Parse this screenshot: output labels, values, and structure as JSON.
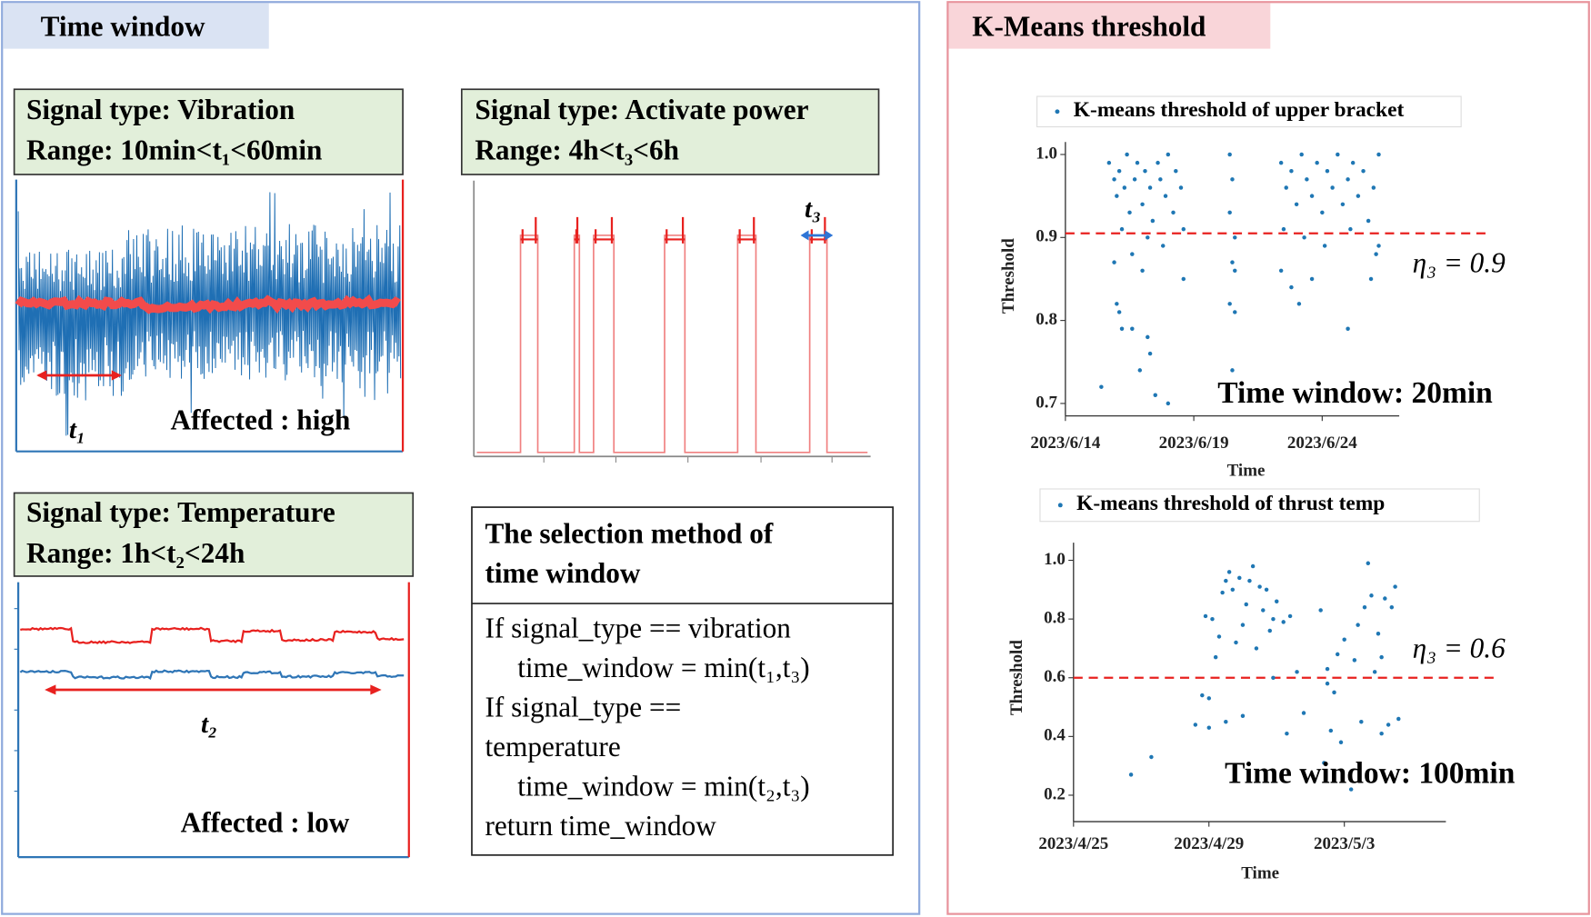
{
  "left_panel": {
    "title": "Time window",
    "vibration": {
      "lines": [
        "Signal type: Vibration",
        "Range: 10min<t₁<60min"
      ],
      "arrow_label": "t₁",
      "note": "Affected : high"
    },
    "power": {
      "lines": [
        "Signal type: Activate power",
        "Range: 4h<t₃<6h"
      ],
      "arrow_label": "t₃"
    },
    "temperature": {
      "lines": [
        "Signal type: Temperature",
        "Range: 1h<t₂<24h"
      ],
      "arrow_label": "t₂",
      "note": "Affected : low"
    },
    "method": {
      "title": [
        "The selection method of",
        "time window"
      ],
      "code": [
        "If signal_type == vibration",
        "time_window = min(t₁,t₃)",
        "If signal_type ==",
        "temperature",
        "time_window = min(t₂,t₃)",
        "return time_window"
      ]
    }
  },
  "right_panel": {
    "title": "K-Means threshold"
  },
  "chart_data": [
    {
      "type": "scatter",
      "xlabel": "Time",
      "ylabel": "Threshold",
      "xlim": [
        165,
        178
      ],
      "ylim": [
        0.685,
        1.015
      ],
      "xticks": [
        {
          "value": 165,
          "label": "2023/6/14"
        },
        {
          "value": 170,
          "label": "2023/6/19"
        },
        {
          "value": 175,
          "label": "2023/6/24"
        }
      ],
      "yticks": [
        {
          "value": 1,
          "label": "1.0"
        },
        0.9,
        0.8,
        0.7
      ],
      "threshold": 0.905,
      "threshold_color": "#e8211f",
      "annotations": [
        "η₃ = 0.9",
        "Time window: 20min"
      ],
      "series": [
        {
          "name": "K-means threshold of upper bracket",
          "color": "#1f77b4",
          "x": [
            166.7,
            166.9,
            167.0,
            167.1,
            167.3,
            167.4,
            167.5,
            167.7,
            167.8,
            168.0,
            168.1,
            168.3,
            168.4,
            168.6,
            168.7,
            168.9,
            169.0,
            169.2,
            169.3,
            169.5,
            169.6,
            167.2,
            168.2,
            168.8,
            167.6,
            166.9,
            167.0,
            167.1,
            167.2,
            167.6,
            168.2,
            168.3,
            167.9,
            166.4,
            168.5,
            169.0,
            169.6,
            168.0,
            171.4,
            171.5,
            171.4,
            171.6,
            171.5,
            171.6,
            171.4,
            171.6,
            171.5,
            173.4,
            173.6,
            173.8,
            174.0,
            174.2,
            174.4,
            174.6,
            174.8,
            175.0,
            175.2,
            175.4,
            175.6,
            175.8,
            176.0,
            176.2,
            176.4,
            176.6,
            176.8,
            177.0,
            177.2,
            173.5,
            174.3,
            175.1,
            176.1,
            177.1,
            173.4,
            173.8,
            174.1,
            174.6,
            176.0,
            176.9,
            177.2
          ],
          "values": [
            0.99,
            0.97,
            0.95,
            0.98,
            0.96,
            1.0,
            0.93,
            0.97,
            0.99,
            0.94,
            0.98,
            0.96,
            0.92,
            0.99,
            0.97,
            0.95,
            1.0,
            0.93,
            0.98,
            0.96,
            0.91,
            0.91,
            0.9,
            0.89,
            0.88,
            0.87,
            0.82,
            0.81,
            0.79,
            0.79,
            0.78,
            0.76,
            0.74,
            0.72,
            0.71,
            0.7,
            0.85,
            0.86,
            1.0,
            0.97,
            0.93,
            0.9,
            0.87,
            0.86,
            0.82,
            0.81,
            0.74,
            0.99,
            0.96,
            0.98,
            0.94,
            1.0,
            0.97,
            0.95,
            0.99,
            0.93,
            0.98,
            0.96,
            1.0,
            0.94,
            0.97,
            0.99,
            0.95,
            0.98,
            0.92,
            0.96,
            1.0,
            0.91,
            0.9,
            0.89,
            0.91,
            0.88,
            0.86,
            0.84,
            0.82,
            0.85,
            0.79,
            0.85,
            0.89
          ]
        }
      ]
    },
    {
      "type": "scatter",
      "xlabel": "Time",
      "ylabel": "Threshold",
      "xlim": [
        115,
        126
      ],
      "ylim": [
        0.11,
        1.06
      ],
      "xticks": [
        {
          "value": 115,
          "label": "2023/4/25"
        },
        {
          "value": 119,
          "label": "2023/4/29"
        },
        {
          "value": 123,
          "label": "2023/5/3"
        }
      ],
      "yticks": [
        {
          "value": 1,
          "label": "1.0"
        },
        0.8,
        0.6,
        0.4,
        0.2
      ],
      "threshold": 0.6,
      "threshold_color": "#e8211f",
      "annotations": [
        "η₃ = 0.6",
        "Time window: 100min"
      ],
      "series": [
        {
          "name": "K-means threshold of thrust temp",
          "color": "#1f77b4",
          "x": [
            116.7,
            117.3,
            118.6,
            118.8,
            118.9,
            119.0,
            119.1,
            119.2,
            119.3,
            119.4,
            119.5,
            119.6,
            119.7,
            119.8,
            119.9,
            120.0,
            120.1,
            120.2,
            120.3,
            120.4,
            120.5,
            120.6,
            120.7,
            120.8,
            120.9,
            121.0,
            121.2,
            121.4,
            121.6,
            121.8,
            119.5,
            120.0,
            119.0,
            120.9,
            121.3,
            122.3,
            122.5,
            122.7,
            122.8,
            123.0,
            122.9,
            122.6,
            122.4,
            123.2,
            123.3,
            123.4,
            123.6,
            123.7,
            123.8,
            123.9,
            124.0,
            124.1,
            124.2,
            124.3,
            124.4,
            124.5,
            124.6,
            124.1,
            123.5,
            122.5
          ],
          "values": [
            0.27,
            0.33,
            0.44,
            0.54,
            0.81,
            0.53,
            0.8,
            0.67,
            0.74,
            0.89,
            0.93,
            0.96,
            0.9,
            0.72,
            0.94,
            0.78,
            0.85,
            0.93,
            0.98,
            0.7,
            0.91,
            0.83,
            0.9,
            0.76,
            0.8,
            0.86,
            0.79,
            0.81,
            0.62,
            0.48,
            0.45,
            0.47,
            0.43,
            0.6,
            0.41,
            0.83,
            0.63,
            0.55,
            0.68,
            0.73,
            0.38,
            0.42,
            0.31,
            0.22,
            0.66,
            0.78,
            0.84,
            0.99,
            0.88,
            0.62,
            0.75,
            0.67,
            0.87,
            0.44,
            0.84,
            0.91,
            0.46,
            0.41,
            0.45,
            0.58
          ]
        }
      ]
    }
  ]
}
